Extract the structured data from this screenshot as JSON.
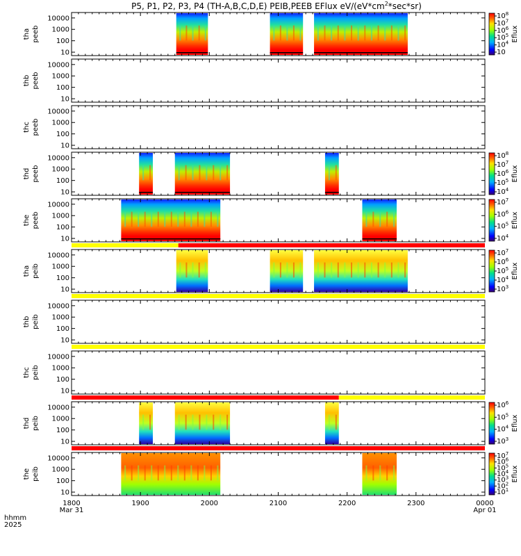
{
  "chart_data": {
    "type": "heatmap",
    "title": "P5, P1, P2, P3, P4 (TH-A,B,C,D,E) PEIB,PEEB EFlux eV/(eV*cm",
    "title_sup": "2",
    "title_tail": "*sec*sr)",
    "colorbar_label": "Eflux",
    "x_axis": {
      "row_label_line1": "hhmm",
      "row_label_line2": "2025",
      "ticks": [
        {
          "value": 1800,
          "label": "1800",
          "sub": "Mar 31"
        },
        {
          "value": 1900,
          "label": "1900",
          "sub": ""
        },
        {
          "value": 2000,
          "label": "2000",
          "sub": ""
        },
        {
          "value": 2100,
          "label": "2100",
          "sub": ""
        },
        {
          "value": 2200,
          "label": "2200",
          "sub": ""
        },
        {
          "value": 2300,
          "label": "2300",
          "sub": ""
        },
        {
          "value": 2400,
          "label": "0000",
          "sub": "Apr 01"
        }
      ],
      "range": [
        1800,
        2400
      ]
    },
    "y_axis": {
      "scale": "log",
      "ticks": [
        "10",
        "100",
        "1000",
        "10000"
      ],
      "range": [
        5,
        30000
      ]
    },
    "panels": [
      {
        "line1": "tha",
        "line2": "peeb",
        "intervals": [
          [
            1952,
            1998
          ],
          [
            2088,
            2136
          ],
          [
            2152,
            2288
          ]
        ],
        "scheme": "electron",
        "colorbar": [
          "10",
          "10",
          "10",
          "10",
          "10",
          "10"
        ],
        "cb_exp": [
          "8",
          "7",
          "6",
          "5",
          "4",
          ""
        ],
        "cb_show": true
      },
      {
        "line1": "thb",
        "line2": "peeb",
        "intervals": [],
        "scheme": "electron",
        "cb_show": false
      },
      {
        "line1": "thc",
        "line2": "peeb",
        "intervals": [],
        "scheme": "electron",
        "cb_show": false
      },
      {
        "line1": "thd",
        "line2": "peeb",
        "intervals": [
          [
            1898,
            1918
          ],
          [
            1950,
            2030
          ],
          [
            2168,
            2188
          ]
        ],
        "scheme": "electron",
        "colorbar": [
          "10",
          "10",
          "10",
          "10",
          "10"
        ],
        "cb_exp": [
          "8",
          "7",
          "6",
          "5",
          "4"
        ],
        "cb_show": true
      },
      {
        "line1": "the",
        "line2": "peeb",
        "intervals": [
          [
            1872,
            2016
          ],
          [
            2222,
            2272
          ]
        ],
        "scheme": "electron",
        "colorbar": [
          "10",
          "10",
          "10",
          "10"
        ],
        "cb_exp": [
          "7",
          "6",
          "5",
          "4"
        ],
        "cb_show": true
      },
      {
        "line1": "tha",
        "line2": "peib",
        "intervals": [
          [
            1952,
            1998
          ],
          [
            2088,
            2136
          ],
          [
            2152,
            2288
          ]
        ],
        "scheme": "ion",
        "colorbar": [
          "10",
          "10",
          "10",
          "10",
          "10"
        ],
        "cb_exp": [
          "7",
          "6",
          "5",
          "4",
          "3"
        ],
        "cb_show": true
      },
      {
        "line1": "thb",
        "line2": "peib",
        "intervals": [],
        "scheme": "ion",
        "cb_show": false
      },
      {
        "line1": "thc",
        "line2": "peib",
        "intervals": [],
        "scheme": "ion",
        "cb_show": false
      },
      {
        "line1": "thd",
        "line2": "peib",
        "intervals": [
          [
            1898,
            1918
          ],
          [
            1950,
            2030
          ],
          [
            2168,
            2188
          ]
        ],
        "scheme": "ion",
        "colorbar": [
          "10",
          "10",
          "10",
          "10"
        ],
        "cb_exp": [
          "6",
          "5",
          "4",
          "3"
        ],
        "cb_show": true
      },
      {
        "line1": "the",
        "line2": "peib",
        "intervals": [
          [
            1872,
            2016
          ],
          [
            2222,
            2272
          ]
        ],
        "scheme": "ionhot",
        "colorbar": [
          "10",
          "10",
          "10",
          "10",
          "10",
          "10",
          "10"
        ],
        "cb_exp": [
          "7",
          "6",
          "5",
          "4",
          "3",
          "2",
          "1"
        ],
        "cb_show": true
      }
    ],
    "mode_bars": [
      {
        "after_panel": 4,
        "segments": [
          [
            1800,
            1955,
            "#ffff00"
          ],
          [
            1955,
            2400,
            "#ff0000"
          ]
        ]
      },
      {
        "after_panel": 5,
        "segments": [
          [
            1800,
            2400,
            "#ffff00"
          ]
        ]
      },
      {
        "after_panel": 6,
        "segments": [
          [
            1800,
            2400,
            "#ffff00"
          ]
        ]
      },
      {
        "after_panel": 7,
        "segments": [
          [
            1800,
            2188,
            "#ff0000"
          ],
          [
            2188,
            2400,
            "#ffff00"
          ]
        ]
      },
      {
        "after_panel": 8,
        "segments": [
          [
            1800,
            2400,
            "#ff0000"
          ]
        ]
      }
    ]
  }
}
